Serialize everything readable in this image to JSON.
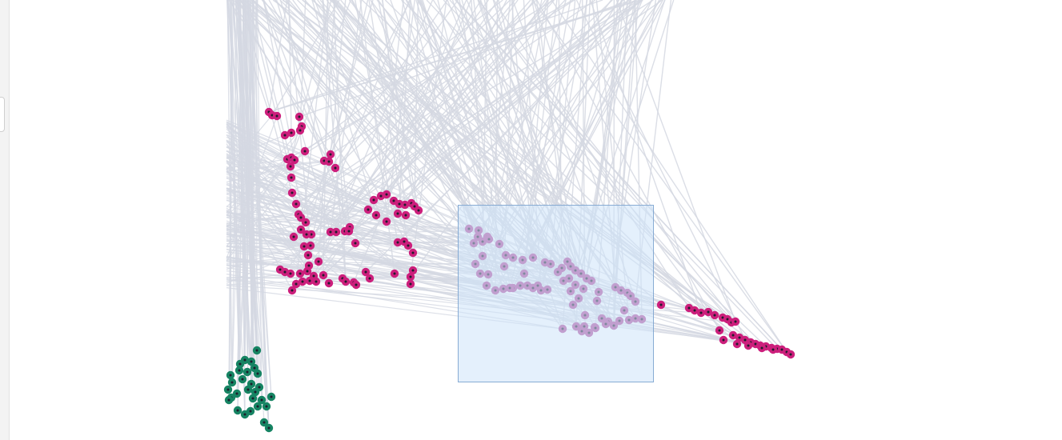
{
  "colors": {
    "background": "#ffffff",
    "edge": "#d5d8e2",
    "cluster_magenta": "#cc1f7c",
    "cluster_magenta_dim": "#b14d9c",
    "cluster_green": "#168463",
    "node_center": "#1d1d2b",
    "selection_fill": "#cde4fa",
    "selection_stroke": "#78a0cd"
  },
  "panel": {
    "left_strip": "collapsed-sidebar",
    "handle_icon": "drag-handle-icon"
  },
  "selection": {
    "label": "brush-selection"
  }
}
